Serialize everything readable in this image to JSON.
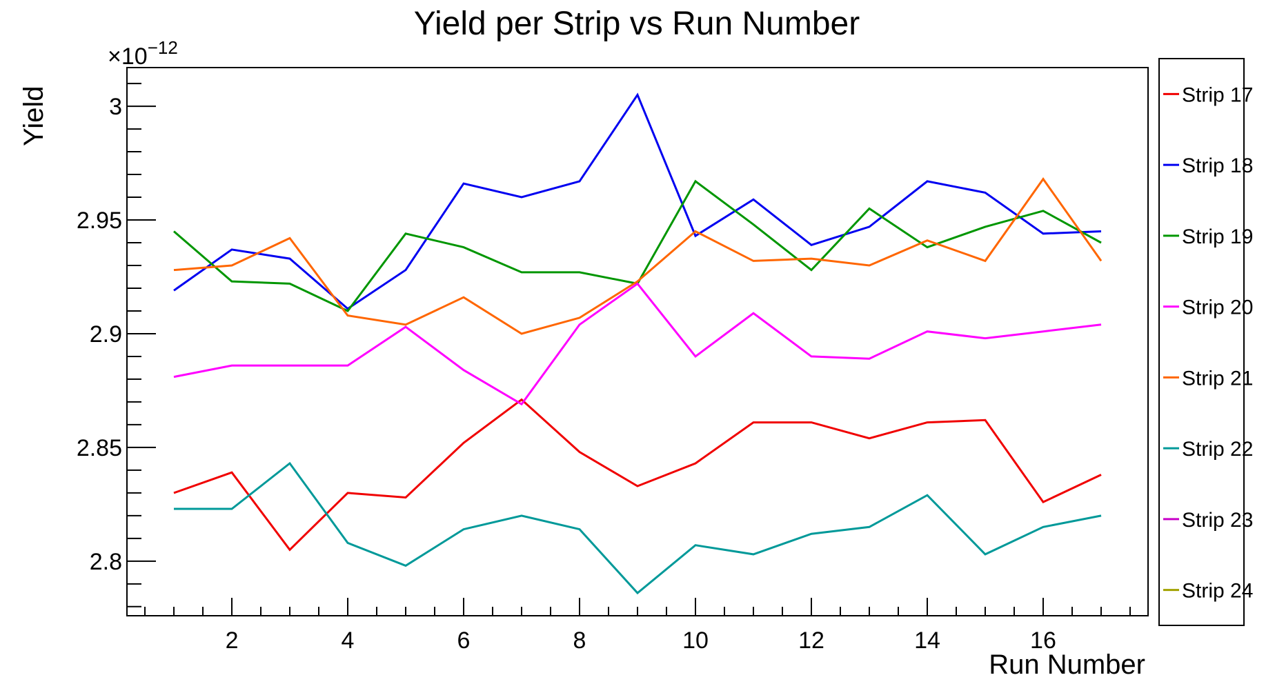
{
  "frame_color": "#000000",
  "background_color": "#ffffff",
  "chart_data": {
    "type": "line",
    "title": "Yield per Strip vs Run Number",
    "xlabel": "Run Number",
    "ylabel": "Yield",
    "y_exponent": {
      "base": "×10",
      "power": "−12"
    },
    "y_unit_note": "y values are in units of 10^-12 (scale factor shown at axis top)",
    "xlim": [
      0.19,
      17.81
    ],
    "ylim": [
      2.776,
      3.017
    ],
    "grid": false,
    "legend_position": "right",
    "x": [
      1,
      2,
      3,
      4,
      5,
      6,
      7,
      8,
      9,
      10,
      11,
      12,
      13,
      14,
      15,
      16,
      17
    ],
    "x_ticks_major": [
      2,
      4,
      6,
      8,
      10,
      12,
      14,
      16
    ],
    "x_tick_minor_step": 0.5,
    "y_ticks_major": [
      {
        "value": 2.8,
        "label": "2.8"
      },
      {
        "value": 2.85,
        "label": "2.85"
      },
      {
        "value": 2.9,
        "label": "2.9"
      },
      {
        "value": 2.95,
        "label": "2.95"
      },
      {
        "value": 3.0,
        "label": "3"
      }
    ],
    "y_tick_minor_step": 0.01,
    "series": [
      {
        "name": "Strip 17",
        "color": "#f00000",
        "values": [
          2.83,
          2.839,
          2.805,
          2.83,
          2.828,
          2.852,
          2.871,
          2.848,
          2.833,
          2.843,
          2.861,
          2.861,
          2.854,
          2.861,
          2.862,
          2.826,
          2.838
        ]
      },
      {
        "name": "Strip 18",
        "color": "#0000f0",
        "values": [
          2.919,
          2.937,
          2.933,
          2.911,
          2.928,
          2.966,
          2.96,
          2.967,
          3.005,
          2.943,
          2.959,
          2.939,
          2.947,
          2.967,
          2.962,
          2.944,
          2.945
        ]
      },
      {
        "name": "Strip 19",
        "color": "#009600",
        "values": [
          2.945,
          2.923,
          2.922,
          2.91,
          2.944,
          2.938,
          2.927,
          2.927,
          2.922,
          2.967,
          2.948,
          2.928,
          2.955,
          2.938,
          2.947,
          2.954,
          2.94
        ]
      },
      {
        "name": "Strip 20",
        "color": "#ff00ff",
        "values": [
          2.881,
          2.886,
          2.886,
          2.886,
          2.903,
          2.884,
          2.869,
          2.904,
          2.922,
          2.89,
          2.909,
          2.89,
          2.889,
          2.901,
          2.898,
          2.901,
          2.904
        ]
      },
      {
        "name": "Strip 21",
        "color": "#ff6600",
        "values": [
          2.928,
          2.93,
          2.942,
          2.908,
          2.904,
          2.916,
          2.9,
          2.907,
          2.923,
          2.945,
          2.932,
          2.933,
          2.93,
          2.941,
          2.932,
          2.968,
          2.932
        ]
      },
      {
        "name": "Strip 22",
        "color": "#009999",
        "values": [
          2.823,
          2.823,
          2.843,
          2.808,
          2.798,
          2.814,
          2.82,
          2.814,
          2.786,
          2.807,
          2.803,
          2.812,
          2.815,
          2.829,
          2.803,
          2.815,
          2.82
        ]
      },
      {
        "name": "Strip 23",
        "color": "#c800c8",
        "values": [],
        "note": "legend entry only; no visibly distinct line in plot area"
      },
      {
        "name": "Strip 24",
        "color": "#a2a200",
        "values": [],
        "note": "legend entry only; no visibly distinct line in plot area"
      }
    ]
  }
}
